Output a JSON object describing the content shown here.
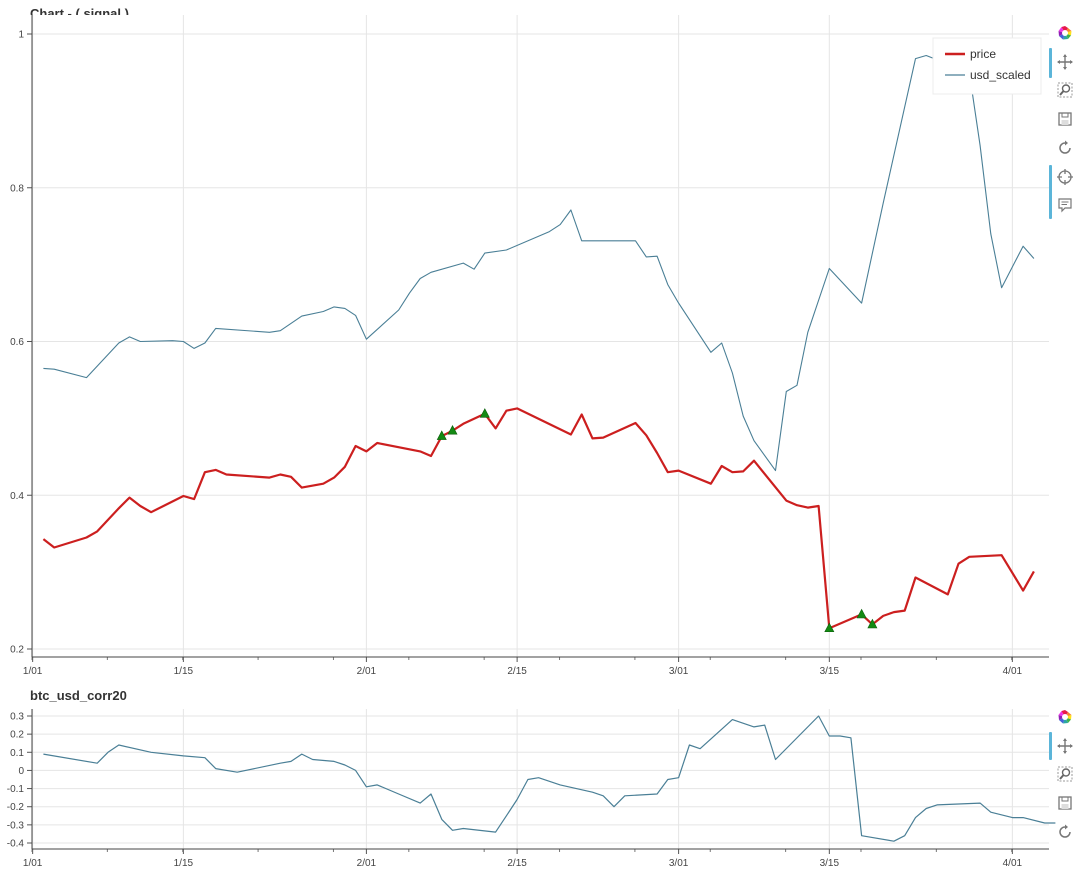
{
  "chart_data": [
    {
      "type": "line",
      "title": "Chart - ( signal )",
      "x_dates": [
        "2020-01-01",
        "2020-01-15",
        "2020-02-01",
        "2020-02-15",
        "2020-03-01",
        "2020-03-15",
        "2020-04-01"
      ],
      "xtick_labels": [
        "1/01",
        "1/15",
        "2/01",
        "2/15",
        "3/01",
        "3/15",
        "4/01"
      ],
      "ylim": [
        0.2,
        1.0
      ],
      "yticks": [
        0.2,
        0.4,
        0.6,
        0.8,
        1.0
      ],
      "ytick_labels": [
        "0.2",
        "0.4",
        "0.6",
        "0.8",
        "1"
      ],
      "grid": true,
      "legend_position": "top-right",
      "series": [
        {
          "name": "price",
          "color": "#cc1f1f",
          "points": [
            [
              "2020-01-02",
              0.343
            ],
            [
              "2020-01-03",
              0.332
            ],
            [
              "2020-01-06",
              0.345
            ],
            [
              "2020-01-07",
              0.353
            ],
            [
              "2020-01-09",
              0.383
            ],
            [
              "2020-01-10",
              0.397
            ],
            [
              "2020-01-11",
              0.386
            ],
            [
              "2020-01-12",
              0.378
            ],
            [
              "2020-01-15",
              0.399
            ],
            [
              "2020-01-16",
              0.395
            ],
            [
              "2020-01-17",
              0.43
            ],
            [
              "2020-01-18",
              0.433
            ],
            [
              "2020-01-19",
              0.427
            ],
            [
              "2020-01-23",
              0.423
            ],
            [
              "2020-01-24",
              0.427
            ],
            [
              "2020-01-25",
              0.424
            ],
            [
              "2020-01-26",
              0.41
            ],
            [
              "2020-01-28",
              0.415
            ],
            [
              "2020-01-29",
              0.423
            ],
            [
              "2020-01-30",
              0.437
            ],
            [
              "2020-01-31",
              0.464
            ],
            [
              "2020-02-01",
              0.457
            ],
            [
              "2020-02-02",
              0.468
            ],
            [
              "2020-02-06",
              0.457
            ],
            [
              "2020-02-07",
              0.451
            ],
            [
              "2020-02-08",
              0.477
            ],
            [
              "2020-02-09",
              0.484
            ],
            [
              "2020-02-10",
              0.493
            ],
            [
              "2020-02-12",
              0.506
            ],
            [
              "2020-02-13",
              0.487
            ],
            [
              "2020-02-14",
              0.51
            ],
            [
              "2020-02-15",
              0.513
            ],
            [
              "2020-02-20",
              0.479
            ],
            [
              "2020-02-21",
              0.505
            ],
            [
              "2020-02-22",
              0.474
            ],
            [
              "2020-02-23",
              0.475
            ],
            [
              "2020-02-26",
              0.494
            ],
            [
              "2020-02-27",
              0.478
            ],
            [
              "2020-02-28",
              0.455
            ],
            [
              "2020-02-29",
              0.43
            ],
            [
              "2020-03-01",
              0.432
            ],
            [
              "2020-03-04",
              0.415
            ],
            [
              "2020-03-05",
              0.438
            ],
            [
              "2020-03-06",
              0.43
            ],
            [
              "2020-03-07",
              0.431
            ],
            [
              "2020-03-08",
              0.445
            ],
            [
              "2020-03-11",
              0.393
            ],
            [
              "2020-03-12",
              0.387
            ],
            [
              "2020-03-13",
              0.384
            ],
            [
              "2020-03-14",
              0.386
            ],
            [
              "2020-03-15",
              0.227
            ],
            [
              "2020-03-18",
              0.245
            ],
            [
              "2020-03-19",
              0.232
            ],
            [
              "2020-03-20",
              0.243
            ],
            [
              "2020-03-21",
              0.248
            ],
            [
              "2020-03-22",
              0.25
            ],
            [
              "2020-03-23",
              0.293
            ],
            [
              "2020-03-26",
              0.271
            ],
            [
              "2020-03-27",
              0.311
            ],
            [
              "2020-03-28",
              0.32
            ],
            [
              "2020-03-31",
              0.322
            ],
            [
              "2020-04-02",
              0.276
            ],
            [
              "2020-04-03",
              0.301
            ]
          ],
          "markers": [
            [
              "2020-02-08",
              0.477
            ],
            [
              "2020-02-09",
              0.484
            ],
            [
              "2020-02-12",
              0.506
            ],
            [
              "2020-03-15",
              0.227
            ],
            [
              "2020-03-18",
              0.245
            ],
            [
              "2020-03-19",
              0.232
            ]
          ],
          "marker_color": "#138a13"
        },
        {
          "name": "usd_scaled",
          "color": "#4a7f96",
          "points": [
            [
              "2020-01-02",
              0.565
            ],
            [
              "2020-01-03",
              0.564
            ],
            [
              "2020-01-06",
              0.553
            ],
            [
              "2020-01-09",
              0.598
            ],
            [
              "2020-01-10",
              0.606
            ],
            [
              "2020-01-11",
              0.6
            ],
            [
              "2020-01-14",
              0.601
            ],
            [
              "2020-01-15",
              0.6
            ],
            [
              "2020-01-16",
              0.591
            ],
            [
              "2020-01-17",
              0.598
            ],
            [
              "2020-01-18",
              0.617
            ],
            [
              "2020-01-23",
              0.612
            ],
            [
              "2020-01-24",
              0.614
            ],
            [
              "2020-01-26",
              0.633
            ],
            [
              "2020-01-28",
              0.639
            ],
            [
              "2020-01-29",
              0.645
            ],
            [
              "2020-01-30",
              0.643
            ],
            [
              "2020-01-31",
              0.634
            ],
            [
              "2020-02-01",
              0.603
            ],
            [
              "2020-02-04",
              0.641
            ],
            [
              "2020-02-05",
              0.663
            ],
            [
              "2020-02-06",
              0.682
            ],
            [
              "2020-02-07",
              0.69
            ],
            [
              "2020-02-10",
              0.702
            ],
            [
              "2020-02-11",
              0.694
            ],
            [
              "2020-02-12",
              0.715
            ],
            [
              "2020-02-14",
              0.719
            ],
            [
              "2020-02-18",
              0.743
            ],
            [
              "2020-02-19",
              0.752
            ],
            [
              "2020-02-20",
              0.771
            ],
            [
              "2020-02-21",
              0.731
            ],
            [
              "2020-02-26",
              0.731
            ],
            [
              "2020-02-27",
              0.71
            ],
            [
              "2020-02-28",
              0.711
            ],
            [
              "2020-02-29",
              0.674
            ],
            [
              "2020-03-01",
              0.65
            ],
            [
              "2020-03-04",
              0.586
            ],
            [
              "2020-03-05",
              0.598
            ],
            [
              "2020-03-06",
              0.559
            ],
            [
              "2020-03-07",
              0.503
            ],
            [
              "2020-03-08",
              0.471
            ],
            [
              "2020-03-10",
              0.432
            ],
            [
              "2020-03-11",
              0.535
            ],
            [
              "2020-03-12",
              0.543
            ],
            [
              "2020-03-13",
              0.612
            ],
            [
              "2020-03-15",
              0.695
            ],
            [
              "2020-03-18",
              0.65
            ],
            [
              "2020-03-20",
              0.78
            ],
            [
              "2020-03-23",
              0.968
            ],
            [
              "2020-03-24",
              0.972
            ],
            [
              "2020-03-28",
              0.95
            ],
            [
              "2020-03-29",
              0.855
            ],
            [
              "2020-03-30",
              0.74
            ],
            [
              "2020-03-31",
              0.67
            ],
            [
              "2020-04-02",
              0.724
            ],
            [
              "2020-04-03",
              0.708
            ]
          ]
        }
      ]
    },
    {
      "type": "line",
      "title": "btc_usd_corr20",
      "x_dates": [
        "2020-01-01",
        "2020-01-15",
        "2020-02-01",
        "2020-02-15",
        "2020-03-01",
        "2020-03-15",
        "2020-04-01"
      ],
      "xtick_labels": [
        "1/01",
        "1/15",
        "2/01",
        "2/15",
        "3/01",
        "3/15",
        "4/01"
      ],
      "ylim": [
        -0.4,
        0.3
      ],
      "yticks": [
        -0.4,
        -0.3,
        -0.2,
        -0.1,
        0,
        0.1,
        0.2,
        0.3
      ],
      "ytick_labels": [
        "-0.4",
        "-0.3",
        "-0.2",
        "-0.1",
        "0",
        "0.1",
        "0.2",
        "0.3"
      ],
      "grid": true,
      "series": [
        {
          "color": "#4a7f96",
          "points": [
            [
              "2020-01-02",
              0.09
            ],
            [
              "2020-01-07",
              0.04
            ],
            [
              "2020-01-08",
              0.1
            ],
            [
              "2020-01-09",
              0.14
            ],
            [
              "2020-01-12",
              0.1
            ],
            [
              "2020-01-15",
              0.08
            ],
            [
              "2020-01-17",
              0.07
            ],
            [
              "2020-01-18",
              0.01
            ],
            [
              "2020-01-20",
              -0.01
            ],
            [
              "2020-01-24",
              0.04
            ],
            [
              "2020-01-25",
              0.05
            ],
            [
              "2020-01-26",
              0.09
            ],
            [
              "2020-01-27",
              0.06
            ],
            [
              "2020-01-29",
              0.05
            ],
            [
              "2020-01-30",
              0.03
            ],
            [
              "2020-01-31",
              0.0
            ],
            [
              "2020-02-01",
              -0.09
            ],
            [
              "2020-02-02",
              -0.08
            ],
            [
              "2020-02-04",
              -0.13
            ],
            [
              "2020-02-06",
              -0.18
            ],
            [
              "2020-02-07",
              -0.13
            ],
            [
              "2020-02-08",
              -0.27
            ],
            [
              "2020-02-09",
              -0.33
            ],
            [
              "2020-02-10",
              -0.32
            ],
            [
              "2020-02-13",
              -0.34
            ],
            [
              "2020-02-14",
              -0.25
            ],
            [
              "2020-02-15",
              -0.16
            ],
            [
              "2020-02-16",
              -0.05
            ],
            [
              "2020-02-17",
              -0.04
            ],
            [
              "2020-02-19",
              -0.08
            ],
            [
              "2020-02-22",
              -0.12
            ],
            [
              "2020-02-23",
              -0.14
            ],
            [
              "2020-02-24",
              -0.2
            ],
            [
              "2020-02-25",
              -0.14
            ],
            [
              "2020-02-28",
              -0.13
            ],
            [
              "2020-02-29",
              -0.05
            ],
            [
              "2020-03-01",
              -0.04
            ],
            [
              "2020-03-02",
              0.14
            ],
            [
              "2020-03-03",
              0.12
            ],
            [
              "2020-03-06",
              0.28
            ],
            [
              "2020-03-08",
              0.24
            ],
            [
              "2020-03-09",
              0.25
            ],
            [
              "2020-03-10",
              0.06
            ],
            [
              "2020-03-14",
              0.3
            ],
            [
              "2020-03-15",
              0.19
            ],
            [
              "2020-03-16",
              0.19
            ],
            [
              "2020-03-17",
              0.18
            ],
            [
              "2020-03-18",
              -0.36
            ],
            [
              "2020-03-21",
              -0.39
            ],
            [
              "2020-03-22",
              -0.36
            ],
            [
              "2020-03-23",
              -0.26
            ],
            [
              "2020-03-24",
              -0.21
            ],
            [
              "2020-03-25",
              -0.19
            ],
            [
              "2020-03-29",
              -0.18
            ],
            [
              "2020-03-30",
              -0.23
            ],
            [
              "2020-04-01",
              -0.26
            ],
            [
              "2020-04-02",
              -0.26
            ],
            [
              "2020-04-04",
              -0.29
            ],
            [
              "2020-04-05",
              -0.29
            ]
          ]
        }
      ]
    }
  ],
  "toolbar_icons": {
    "main": [
      "bokeh-logo-icon",
      "pan-icon",
      "box-zoom-icon",
      "save-icon",
      "reset-icon",
      "crosshair-icon",
      "hover-icon"
    ],
    "sub": [
      "bokeh-logo-icon",
      "pan-icon",
      "box-zoom-icon",
      "save-icon",
      "reset-icon"
    ]
  }
}
